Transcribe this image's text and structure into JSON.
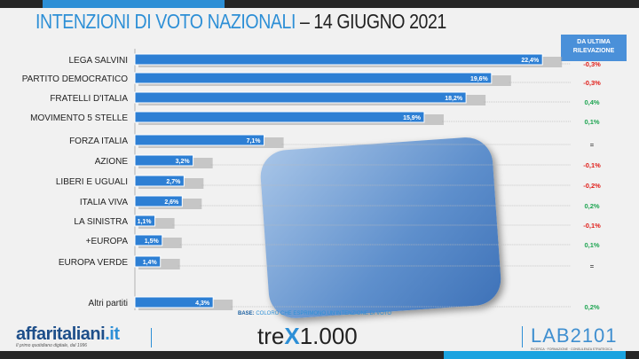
{
  "title": {
    "part1": "INTENZIONI DI VOTO NAZIONALI",
    "part2": "– 14 GIUGNO 2021"
  },
  "change_header": "DA ULTIMA RILEVAZIONE",
  "colors": {
    "bar": "#2d7fd4",
    "negative": "#e0201b",
    "positive": "#1fa552",
    "neutral": "#333333"
  },
  "chart_data": {
    "type": "bar",
    "orientation": "horizontal",
    "title": "INTENZIONI DI VOTO NAZIONALI – 14 GIUGNO 2021",
    "categories": [
      "LEGA SALVINI",
      "PARTITO DEMOCRATICO",
      "FRATELLI D'ITALIA",
      "MOVIMENTO 5 STELLE",
      "FORZA ITALIA",
      "AZIONE",
      "LIBERI E UGUALI",
      "ITALIA VIVA",
      "LA SINISTRA",
      "+EUROPA",
      "EUROPA VERDE",
      "Altri partiti"
    ],
    "values": [
      22.4,
      19.6,
      18.2,
      15.9,
      7.1,
      3.2,
      2.7,
      2.6,
      1.1,
      1.5,
      1.4,
      4.3
    ],
    "value_labels": [
      "22,4%",
      "19,6%",
      "18,2%",
      "15,9%",
      "7,1%",
      "3,2%",
      "2,7%",
      "2,6%",
      "1,1%",
      "1,5%",
      "1,4%",
      "4,3%"
    ],
    "changes": [
      "-0,3%",
      "-0,3%",
      "0,4%",
      "0,1%",
      "=",
      "-0,1%",
      "-0,2%",
      "0,2%",
      "-0,1%",
      "0,1%",
      "=",
      "0,2%"
    ]
  },
  "footer": {
    "base_label": "BASE:",
    "base_text": "COLORO CHE ESPRIMONO UN'INTENZIONE DI VOTO",
    "logo1": "affaritaliani",
    "logo1_tld": ".it",
    "logo1_tagline": "Il primo quotidiano digitale, dal 1996",
    "logo2_a": "tre",
    "logo2_b": "X",
    "logo2_c": "1.000",
    "logo3": "LAB2101",
    "logo3_tagline": "RICERCA · FORMAZIONE · CONSULENZA STRATEGICA"
  }
}
